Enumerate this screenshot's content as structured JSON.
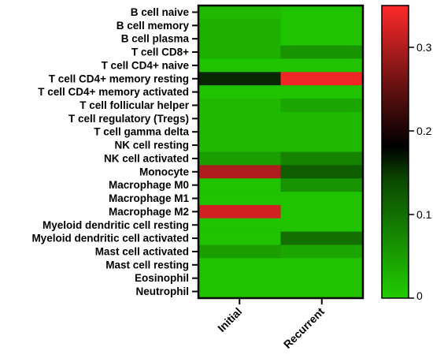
{
  "chart_data": {
    "type": "heatmap",
    "columns": [
      "Initial",
      "Recurrent"
    ],
    "rows": [
      "B cell naive",
      "B cell memory",
      "B cell plasma",
      "T cell CD8+",
      "T cell CD4+ naive",
      "T cell CD4+ memory resting",
      "T cell CD4+ memory activated",
      "T cell follicular helper",
      "T cell regulatory (Tregs)",
      "T cell gamma delta",
      "NK cell resting",
      "NK cell activated",
      "Monocyte",
      "Macrophage M0",
      "Macrophage M1",
      "Macrophage M2",
      "Myeloid dendritic cell resting",
      "Myeloid dendritic cell activated",
      "Mast cell activated",
      "Mast cell resting",
      "Eosinophil",
      "Neutrophil"
    ],
    "values": [
      [
        0.02,
        0.01
      ],
      [
        0.03,
        0.01
      ],
      [
        0.03,
        0.01
      ],
      [
        0.03,
        0.06
      ],
      [
        0.01,
        0.01
      ],
      [
        0.16,
        0.34
      ],
      [
        0.01,
        0.01
      ],
      [
        0.02,
        0.04
      ],
      [
        0.02,
        0.02
      ],
      [
        0.02,
        0.02
      ],
      [
        0.02,
        0.02
      ],
      [
        0.05,
        0.08
      ],
      [
        0.3,
        0.12
      ],
      [
        0.01,
        0.06
      ],
      [
        0.01,
        0.01
      ],
      [
        0.32,
        0.01
      ],
      [
        0.01,
        0.01
      ],
      [
        0.01,
        0.1
      ],
      [
        0.05,
        0.04
      ],
      [
        0.01,
        0.01
      ],
      [
        0.01,
        0.01
      ],
      [
        0.01,
        0.01
      ]
    ],
    "colorbar": {
      "ticks": [
        "0",
        "0.1",
        "0.2",
        "0.3"
      ],
      "tick_values": [
        0,
        0.1,
        0.2,
        0.3
      ],
      "range": [
        0,
        0.35
      ],
      "colors": [
        "#22cc00",
        "#000000",
        "#ff2a2a"
      ]
    }
  }
}
